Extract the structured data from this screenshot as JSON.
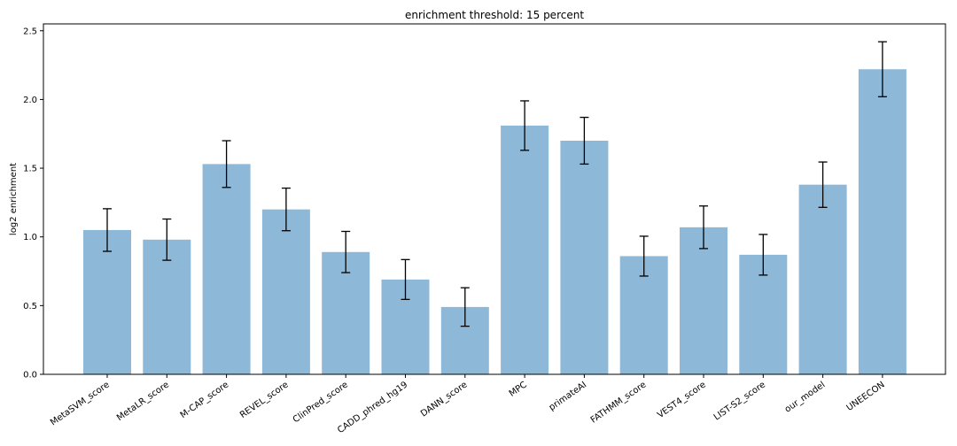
{
  "chart_data": {
    "type": "bar",
    "title": "enrichment threshold: 15 percent",
    "xlabel": "",
    "ylabel": "log2 enrichment",
    "ylim": [
      0,
      2.55
    ],
    "yticks": [
      "0.0",
      "0.5",
      "1.0",
      "1.5",
      "2.0",
      "2.5"
    ],
    "grid": false,
    "categories": [
      "MetaSVM_score",
      "MetaLR_score",
      "M-CAP_score",
      "REVEL_score",
      "ClinPred_score",
      "CADD_phred_hg19",
      "DANN_score",
      "MPC",
      "primateAI",
      "FATHMM_score",
      "VEST4_score",
      "LIST-S2_score",
      "our_model",
      "UNEECON"
    ],
    "values": [
      1.05,
      0.98,
      1.53,
      1.2,
      0.89,
      0.69,
      0.49,
      1.81,
      1.7,
      0.86,
      1.07,
      0.87,
      1.38,
      2.22
    ],
    "errors": [
      0.155,
      0.15,
      0.17,
      0.155,
      0.15,
      0.145,
      0.14,
      0.18,
      0.17,
      0.145,
      0.155,
      0.148,
      0.165,
      0.2
    ],
    "bar_color": "#8db8d8",
    "error_color": "#000000"
  }
}
